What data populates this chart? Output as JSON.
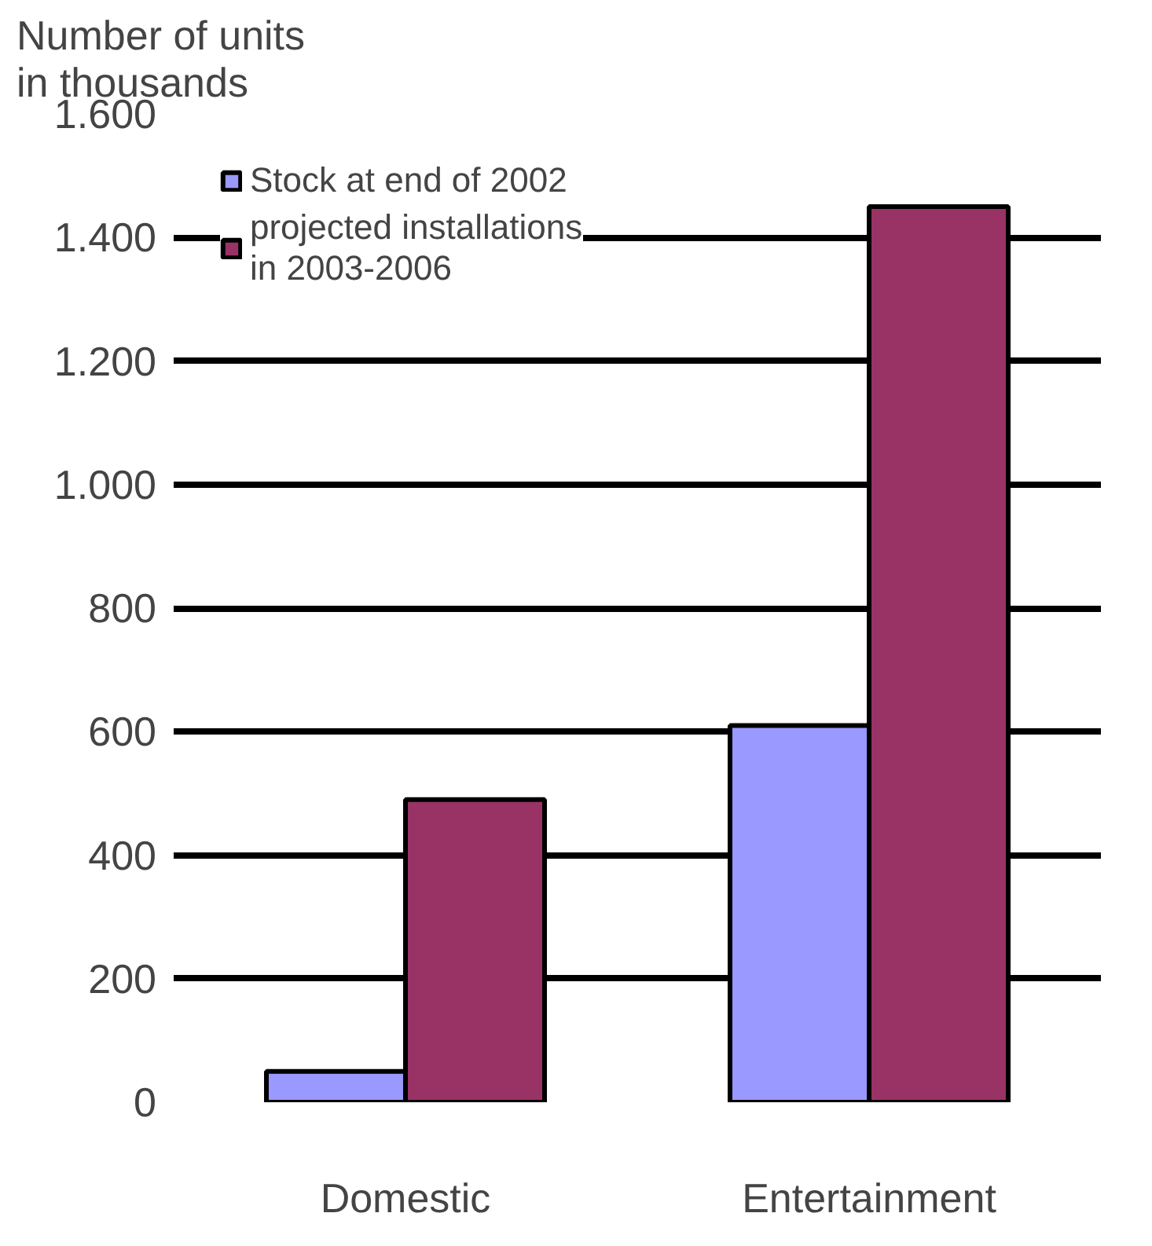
{
  "chart_data": {
    "type": "bar",
    "title": "Number of units\nin thousands",
    "categories": [
      "Domestic",
      "Entertainment"
    ],
    "series": [
      {
        "name": "Stock at end of 2002",
        "color": "#9999ff",
        "values": [
          50,
          610
        ]
      },
      {
        "name": "projected installations\nin 2003-2006",
        "color": "#993366",
        "values": [
          490,
          1450
        ]
      }
    ],
    "ylim": [
      0,
      1600
    ],
    "yticks": [
      0,
      200,
      400,
      600,
      800,
      {
        "value": 1000,
        "label": "1.000"
      },
      {
        "value": 1200,
        "label": "1.200"
      },
      {
        "value": 1400,
        "label": "1.400"
      },
      {
        "value": 1600,
        "label": "1.600"
      }
    ],
    "grid": "y",
    "legend": "top left"
  }
}
